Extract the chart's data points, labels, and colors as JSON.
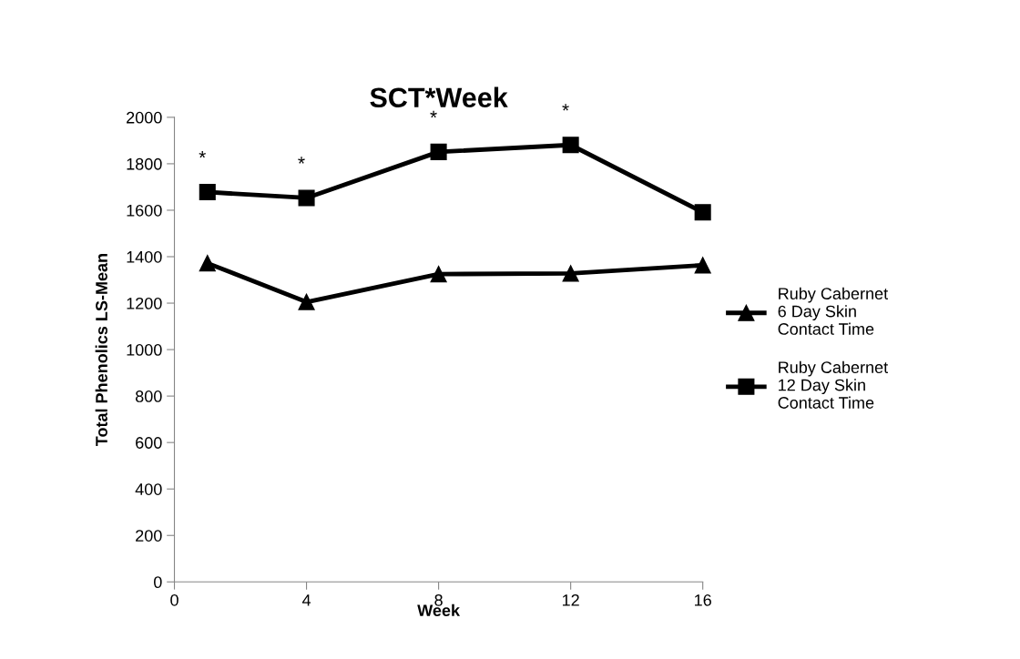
{
  "chart_data": {
    "type": "line",
    "title": "SCT*Week",
    "xlabel": "Week",
    "ylabel": "Total Phenolics LS-Mean",
    "x": [
      1,
      4,
      8,
      12,
      16
    ],
    "series": [
      {
        "name": "Ruby Cabernet\n6 Day Skin\nContact Time",
        "color": "#000000",
        "marker": "triangle",
        "values": [
          1372,
          1205,
          1325,
          1328,
          1363
        ]
      },
      {
        "name": "Ruby Cabernet\n12 Day Skin\nContact Time",
        "color": "#000000",
        "marker": "square",
        "values": [
          1678,
          1653,
          1851,
          1881,
          1591
        ]
      }
    ],
    "annotations": [
      {
        "text": "*",
        "x": 1,
        "y": 1678
      },
      {
        "text": "*",
        "x": 4,
        "y": 1653
      },
      {
        "text": "*",
        "x": 8,
        "y": 1851
      },
      {
        "text": "*",
        "x": 12,
        "y": 1881
      }
    ],
    "xlim": [
      0,
      16
    ],
    "xticks": [
      0,
      4,
      8,
      12,
      16
    ],
    "ylim": [
      0,
      2000
    ],
    "yticks": [
      0,
      200,
      400,
      600,
      800,
      1000,
      1200,
      1400,
      1600,
      1800,
      2000
    ],
    "grid": false,
    "legend": "right",
    "line_style": "solid"
  }
}
